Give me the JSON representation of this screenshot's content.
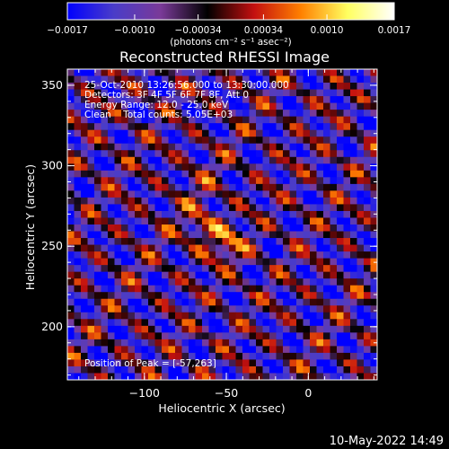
{
  "chart_data": {
    "type": "heatmap",
    "title": "Reconstructed RHESSI Image",
    "xlabel": "Heliocentric X (arcsec)",
    "ylabel": "Heliocentric Y (arcsec)",
    "xlim": [
      -147,
      42
    ],
    "ylim": [
      167,
      360
    ],
    "x_ticks": [
      -100,
      -50,
      0
    ],
    "x_tick_labels": [
      "−100",
      "−50",
      "0"
    ],
    "y_ticks": [
      200,
      250,
      300,
      350
    ],
    "y_tick_labels": [
      "200",
      "250",
      "300",
      "350"
    ],
    "colorbar": {
      "range": [
        -0.0017,
        0.0017
      ],
      "tick_labels": [
        "−0.0017",
        "−0.0010",
        "−0.00034",
        "0.00034",
        "0.0010",
        "0.0017"
      ],
      "tick_values": [
        -0.0017,
        -0.001,
        -0.00034,
        0.00034,
        0.001,
        0.0017
      ],
      "units": "(photons cm⁻² s⁻¹ asec⁻²)",
      "colormap": [
        "#0000ff",
        "#4a3cc8",
        "#7a3a98",
        "#000000",
        "#c41010",
        "#ff8000",
        "#ffff60",
        "#ffffff"
      ]
    },
    "annotations": {
      "time": "25-Oct-2010 13:26:56.000 to 13:30:00.000",
      "detectors": "Detectors: 3F 4F 5F 6F 7F 8F, Att 0",
      "energy": "Energy Range: 12.0 - 25.0 keV",
      "clean": "Clean    Total counts: 5.05E+03",
      "peak": "Position of Peak = [-57,263]"
    },
    "peak": {
      "x": -57,
      "y": 263
    },
    "peak_value": 0.0017
  },
  "footer": {
    "date": "10-May-2022 14:49"
  }
}
